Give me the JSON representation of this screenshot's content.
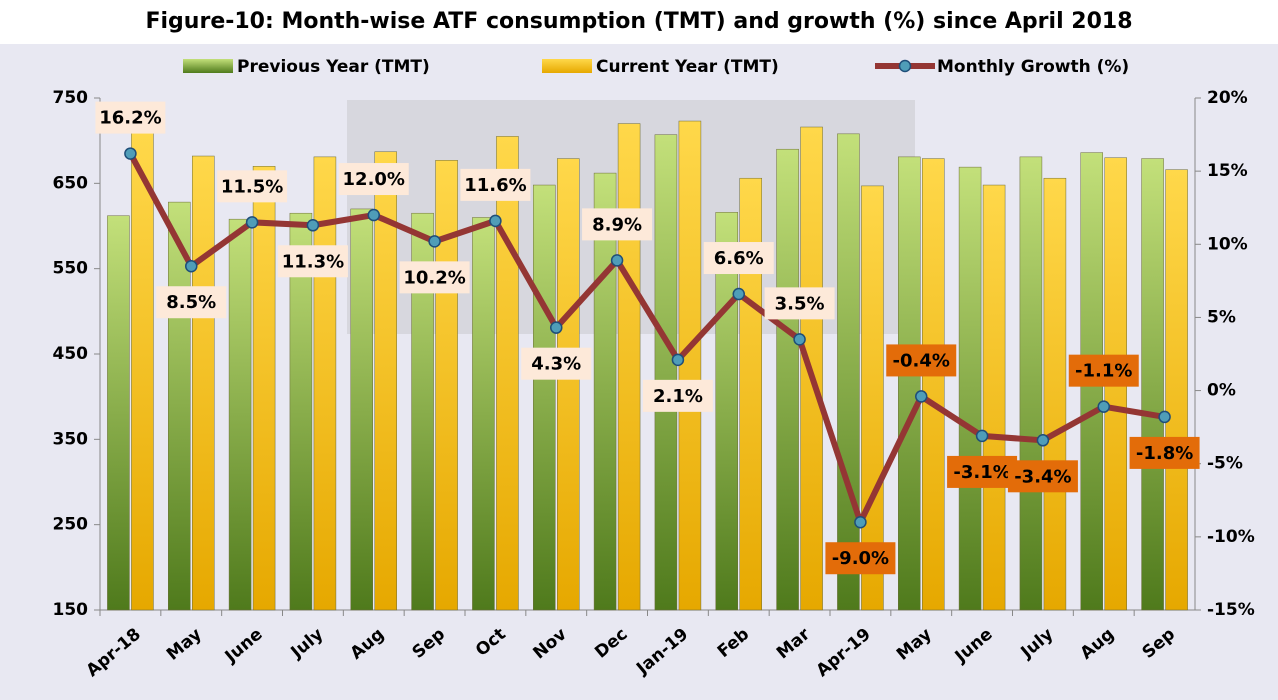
{
  "chart_data": {
    "type": "bar",
    "title": "Figure-10: Month-wise ATF consumption (TMT) and growth (%) since April 2018",
    "categories": [
      "Apr-18",
      "May",
      "June",
      "July",
      "Aug",
      "Sep",
      "Oct",
      "Nov",
      "Dec",
      "Jan-19",
      "Feb",
      "Mar",
      "Apr-19",
      "May",
      "June",
      "July",
      "Aug",
      "Sep"
    ],
    "series": [
      {
        "name": "Previous Year (TMT)",
        "type": "bar",
        "color": "#8db33a",
        "values": [
          612,
          628,
          608,
          615,
          620,
          615,
          610,
          648,
          662,
          707,
          616,
          690,
          708,
          681,
          669,
          681,
          686,
          679
        ]
      },
      {
        "name": "Current Year (TMT)",
        "type": "bar",
        "color": "#ffc000",
        "values": [
          709,
          682,
          670,
          681,
          687,
          677,
          705,
          679,
          720,
          723,
          656,
          716,
          647,
          679,
          648,
          656,
          680,
          666
        ]
      },
      {
        "name": "Monthly Growth (%)",
        "type": "line",
        "axis": "y2",
        "color": "#943634",
        "values": [
          16.2,
          8.5,
          11.5,
          11.3,
          12.0,
          10.2,
          11.6,
          4.3,
          8.9,
          2.1,
          6.6,
          3.5,
          -9.0,
          -0.4,
          -3.1,
          -3.4,
          -1.1,
          -1.8
        ],
        "value_labels": [
          "16.2%",
          "8.5%",
          "11.5%",
          "11.3%",
          "12.0%",
          "10.2%",
          "11.6%",
          "4.3%",
          "8.9%",
          "2.1%",
          "6.6%",
          "3.5%",
          "-9.0%",
          "-0.4%",
          "-3.1%",
          "-3.4%",
          "-1.1%",
          "-1.8%"
        ]
      }
    ],
    "ylim": [
      150,
      750
    ],
    "yticks": [
      150,
      250,
      350,
      450,
      550,
      650,
      750
    ],
    "y2lim": [
      -15,
      20
    ],
    "y2ticks": [
      {
        "value": -15,
        "label": "-15%"
      },
      {
        "value": -10,
        "label": "-10%"
      },
      {
        "value": -5,
        "label": "-5%"
      },
      {
        "value": 0,
        "label": "0%"
      },
      {
        "value": 5,
        "label": "5%"
      },
      {
        "value": 10,
        "label": "10%"
      },
      {
        "value": 15,
        "label": "15%"
      },
      {
        "value": 20,
        "label": "20%"
      }
    ],
    "legend": "top"
  }
}
